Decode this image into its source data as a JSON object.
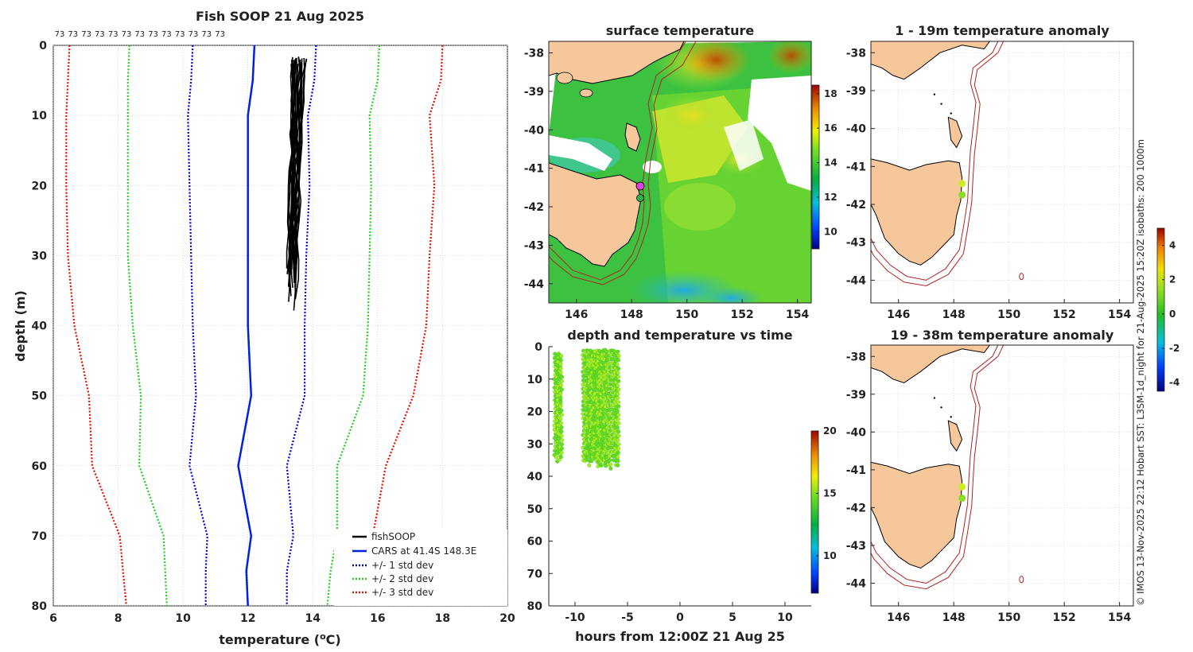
{
  "colors": {
    "fishsoop": "#000000",
    "cars": "#0022dd",
    "sd1": "#0000cc",
    "sd2": "#22cc22",
    "sd3": "#dd1100",
    "land": "#f6c79b",
    "isobath": "#b22222",
    "dot_green": "#66dd22",
    "dot_yellowgreen": "#aaee22"
  },
  "credit": "© IMOS 13-Nov-2025 22:12 Hobart SST: L3SM-1d_night for 21-Aug-2025 15:20Z isobaths: 200  1000m",
  "chart_data": [
    {
      "type": "line",
      "title": "Fish SOOP 21 Aug 2025",
      "xlabel": "temperature (",
      "xlabel_sup": "o",
      "xlabel_end": "C)",
      "ylabel": "depth (m)",
      "xlim": [
        6,
        20
      ],
      "ylim": [
        0,
        80
      ],
      "y_reversed": true,
      "xticks": [
        6,
        8,
        10,
        12,
        14,
        16,
        18,
        20
      ],
      "yticks": [
        0,
        10,
        20,
        30,
        40,
        50,
        60,
        70,
        80
      ],
      "grid": true,
      "legend_position": "bottom-right",
      "profile_counts": [
        "73",
        "73",
        "73",
        "73",
        "73",
        "73",
        "73",
        "73",
        "73",
        "73",
        "73",
        "73",
        "73"
      ],
      "series": [
        {
          "name": "fishSOOP",
          "style": "solid",
          "profiles_depth_range": [
            1.5,
            38
          ],
          "profiles_temp_range": [
            13.2,
            13.9
          ]
        },
        {
          "name": "CARS at 41.4S 148.3E",
          "style": "solid",
          "depth": [
            0,
            5,
            10,
            20,
            30,
            40,
            50,
            60,
            70,
            75,
            80
          ],
          "temp": [
            12.2,
            12.15,
            12.0,
            12.0,
            12.0,
            12.0,
            12.1,
            11.7,
            12.1,
            11.95,
            12.0
          ]
        },
        {
          "name": "+/- 1 std dev",
          "style": "dotted",
          "depth": [
            0,
            5,
            10,
            20,
            30,
            40,
            50,
            60,
            70,
            75,
            80
          ],
          "low": [
            10.3,
            10.25,
            10.15,
            10.2,
            10.25,
            10.3,
            10.4,
            10.2,
            10.75,
            10.7,
            10.7
          ],
          "high": [
            14.1,
            14.05,
            13.85,
            13.9,
            13.8,
            13.75,
            13.75,
            13.2,
            13.4,
            13.2,
            13.2
          ]
        },
        {
          "name": "+/- 2 std dev",
          "style": "dotted",
          "depth": [
            0,
            5,
            10,
            20,
            30,
            40,
            50,
            60,
            70,
            75,
            80
          ],
          "low": [
            8.35,
            8.3,
            8.3,
            8.3,
            8.3,
            8.45,
            8.7,
            8.65,
            9.4,
            9.45,
            9.5
          ],
          "high": [
            16.05,
            16.0,
            15.75,
            15.8,
            15.75,
            15.7,
            15.55,
            14.75,
            14.75,
            14.55,
            14.45
          ]
        },
        {
          "name": "+/- 3 std dev",
          "style": "dotted",
          "depth": [
            0,
            5,
            10,
            20,
            30,
            40,
            50,
            60,
            70,
            75,
            80
          ],
          "low": [
            6.5,
            6.45,
            6.4,
            6.4,
            6.45,
            6.65,
            7.1,
            7.2,
            8.05,
            8.15,
            8.25
          ],
          "high": [
            18.0,
            17.95,
            17.6,
            17.75,
            17.6,
            17.5,
            17.1,
            16.25,
            15.85,
            15.75,
            15.65
          ]
        }
      ]
    },
    {
      "type": "heatmap",
      "title": "surface temperature",
      "xlim": [
        145,
        154.5
      ],
      "ylim": [
        -44.5,
        -37.7
      ],
      "xticks": [
        146,
        148,
        150,
        152,
        154
      ],
      "yticks": [
        -38,
        -39,
        -40,
        -41,
        -42,
        -43,
        -44
      ],
      "colorbar": {
        "min": 9,
        "max": 18.5,
        "ticks": [
          10,
          12,
          14,
          16,
          18
        ]
      },
      "vessel_track": [
        {
          "lon": 148.3,
          "lat": -41.4
        },
        {
          "lon": 148.3,
          "lat": -41.7
        }
      ]
    },
    {
      "type": "scatter",
      "title": "depth and temperature vs time",
      "xlabel": "hours from 12:00Z 21 Aug 25",
      "xlim": [
        -12.5,
        12.5
      ],
      "ylim": [
        0,
        80
      ],
      "y_reversed": true,
      "xticks": [
        -10,
        -5,
        0,
        5,
        10
      ],
      "yticks": [
        0,
        10,
        20,
        30,
        40,
        50,
        60,
        70,
        80
      ],
      "colorbar": {
        "min": 7,
        "max": 20,
        "ticks": [
          10,
          15,
          20
        ]
      },
      "clusters": [
        {
          "hours": [
            -11.9,
            -11.3
          ],
          "depth": [
            2,
            36
          ],
          "temp": 13.3
        },
        {
          "hours": [
            -9.2,
            -5.9
          ],
          "depth": [
            1,
            38
          ],
          "temp": 13.7
        }
      ]
    },
    {
      "type": "scatter",
      "title": "1 - 19m temperature anomaly",
      "xlim": [
        145,
        154.5
      ],
      "ylim": [
        -44.6,
        -37.7
      ],
      "xticks": [
        146,
        148,
        150,
        152,
        154
      ],
      "yticks": [
        -38,
        -39,
        -40,
        -41,
        -42,
        -43,
        -44
      ],
      "points": [
        {
          "lon": 148.3,
          "lat": -41.45,
          "anomaly": 1.5
        },
        {
          "lon": 148.3,
          "lat": -41.75,
          "anomaly": 0.9
        }
      ]
    },
    {
      "type": "scatter",
      "title": "19 - 38m temperature anomaly",
      "xlim": [
        145,
        154.5
      ],
      "ylim": [
        -44.6,
        -37.7
      ],
      "xticks": [
        146,
        148,
        150,
        152,
        154
      ],
      "yticks": [
        -38,
        -39,
        -40,
        -41,
        -42,
        -43,
        -44
      ],
      "points": [
        {
          "lon": 148.3,
          "lat": -41.45,
          "anomaly": 1.3
        },
        {
          "lon": 148.3,
          "lat": -41.75,
          "anomaly": 0.8
        }
      ],
      "colorbar": {
        "min": -4.5,
        "max": 5,
        "ticks": [
          4,
          2,
          0,
          -2,
          -4
        ]
      }
    }
  ]
}
